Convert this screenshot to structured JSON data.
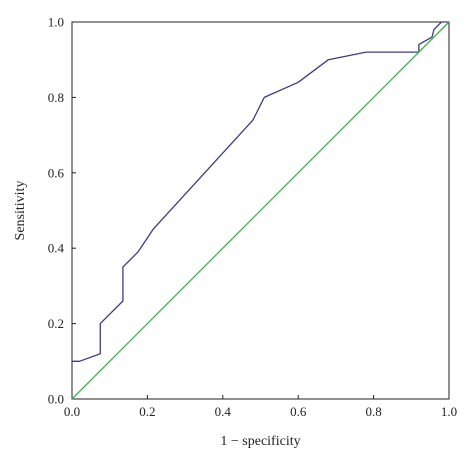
{
  "chart_data": {
    "type": "line",
    "title": "",
    "xlabel": "1 − specificity",
    "ylabel": "Sensitivity",
    "xlim": [
      0,
      1
    ],
    "ylim": [
      0,
      1
    ],
    "x_ticks": [
      "0.0",
      "0.2",
      "0.4",
      "0.6",
      "0.8",
      "1.0"
    ],
    "y_ticks": [
      "0.0",
      "0.2",
      "0.4",
      "0.6",
      "0.8",
      "1.0"
    ],
    "grid": false,
    "legend": "none",
    "series": [
      {
        "color": "#3b3f7a",
        "x": [
          0.0,
          0.02,
          0.075,
          0.075,
          0.135,
          0.135,
          0.175,
          0.215,
          0.48,
          0.51,
          0.6,
          0.68,
          0.78,
          0.92,
          0.92,
          0.955,
          0.96,
          0.98,
          1.0
        ],
        "y": [
          0.1,
          0.1,
          0.12,
          0.2,
          0.26,
          0.35,
          0.39,
          0.45,
          0.74,
          0.8,
          0.84,
          0.9,
          0.92,
          0.92,
          0.94,
          0.96,
          0.98,
          1.0,
          1.0
        ]
      },
      {
        "color": "#3cb04a",
        "x": [
          0,
          1
        ],
        "y": [
          0,
          1
        ]
      }
    ]
  }
}
